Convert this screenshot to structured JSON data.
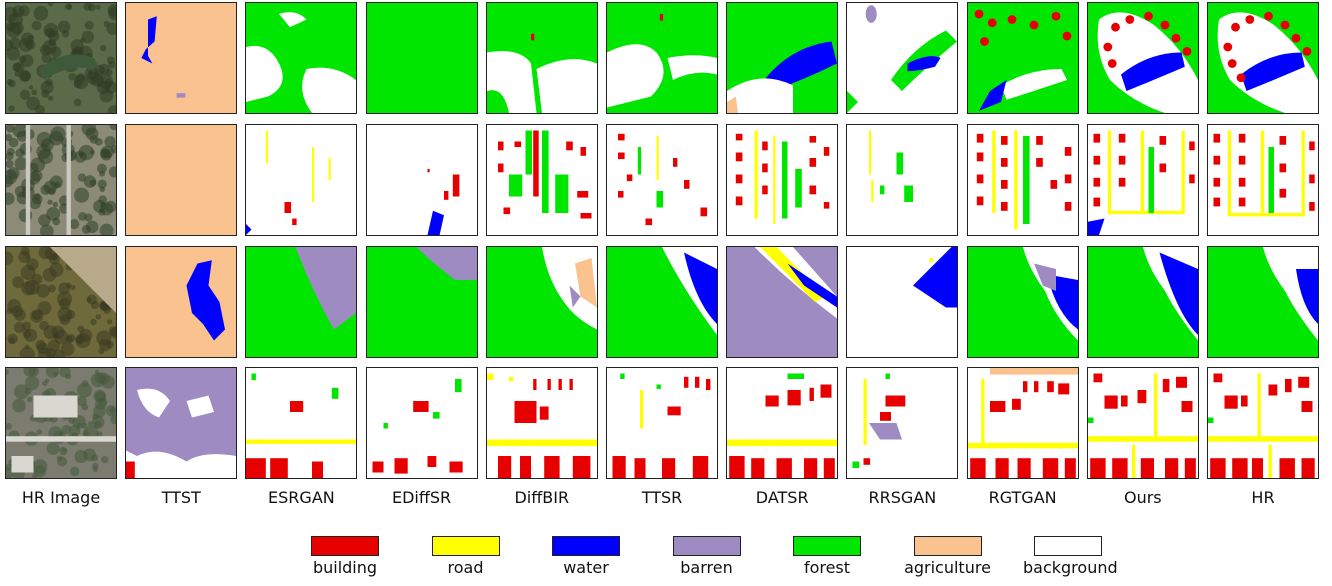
{
  "columns": [
    {
      "label": "HR Image"
    },
    {
      "label": "TTST"
    },
    {
      "label": "ESRGAN"
    },
    {
      "label": "EDiffSR"
    },
    {
      "label": "DiffBIR"
    },
    {
      "label": "TTSR"
    },
    {
      "label": "DATSR"
    },
    {
      "label": "RRSGAN"
    },
    {
      "label": "RGTGAN"
    },
    {
      "label": "Ours"
    },
    {
      "label": "HR"
    }
  ],
  "legend": [
    {
      "label": "building",
      "color": "#e60000"
    },
    {
      "label": "road",
      "color": "#ffff00"
    },
    {
      "label": "water",
      "color": "#0000ff"
    },
    {
      "label": "barren",
      "color": "#9e8bc2"
    },
    {
      "label": "forest",
      "color": "#00e600"
    },
    {
      "label": "agriculture",
      "color": "#f9c28e"
    },
    {
      "label": "background",
      "color": "#ffffff"
    }
  ],
  "rows": 4
}
